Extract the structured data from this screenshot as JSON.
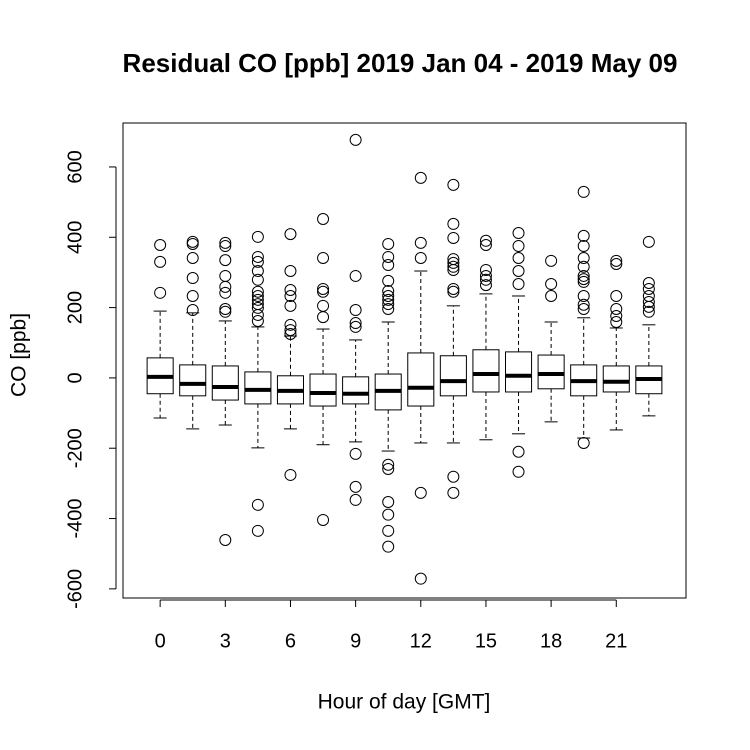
{
  "chart_data": {
    "type": "box",
    "title": "Residual CO [ppb] 2019 Jan 04 - 2019 May 09",
    "x_label": "Hour of day [GMT]",
    "y_label": "CO [ppb]",
    "categories": [
      "0",
      null,
      "3",
      null,
      "6",
      null,
      "9",
      null,
      "12",
      null,
      "15",
      null,
      "18",
      null,
      "21",
      null
    ],
    "ylim": [
      -626,
      725
    ],
    "yticks": [
      -600,
      -400,
      -200,
      0,
      200,
      400,
      600
    ],
    "color": "#000000",
    "boxes": [
      {
        "whisker_low": -114,
        "q1": -45,
        "median": 3,
        "q3": 57,
        "whisker_high": 190,
        "outliers": [
          378,
          330,
          242
        ]
      },
      {
        "whisker_low": -145,
        "q1": -51,
        "median": -17,
        "q3": 37,
        "whisker_high": 185,
        "outliers": [
          387,
          381,
          341,
          284,
          233,
          193
        ]
      },
      {
        "whisker_low": -134,
        "q1": -63,
        "median": -26,
        "q3": 34,
        "whisker_high": 162,
        "outliers": [
          384,
          375,
          335,
          290,
          259,
          242,
          196,
          188,
          -461
        ]
      },
      {
        "whisker_low": -199,
        "q1": -74,
        "median": -34,
        "q3": 17,
        "whisker_high": 145,
        "outliers": [
          401,
          344,
          330,
          304,
          279,
          245,
          233,
          222,
          210,
          199,
          179,
          162,
          -361,
          -435
        ]
      },
      {
        "whisker_low": -145,
        "q1": -74,
        "median": -37,
        "q3": 6,
        "whisker_high": 119,
        "outliers": [
          409,
          304,
          250,
          233,
          205,
          151,
          136,
          125,
          -276
        ]
      },
      {
        "whisker_low": -190,
        "q1": -80,
        "median": -43,
        "q3": 11,
        "whisker_high": 139,
        "outliers": [
          452,
          341,
          253,
          245,
          205,
          173,
          -404
        ]
      },
      {
        "whisker_low": -182,
        "q1": -74,
        "median": -45,
        "q3": 3,
        "whisker_high": 108,
        "outliers": [
          677,
          290,
          193,
          156,
          145,
          -216,
          -310,
          -347
        ]
      },
      {
        "whisker_low": -208,
        "q1": -91,
        "median": -37,
        "q3": 11,
        "whisker_high": 159,
        "outliers": [
          381,
          344,
          321,
          276,
          247,
          233,
          222,
          210,
          196,
          -247,
          -259,
          -353,
          -389,
          -435,
          -480
        ]
      },
      {
        "whisker_low": -185,
        "q1": -80,
        "median": -28,
        "q3": 71,
        "whisker_high": 304,
        "outliers": [
          569,
          384,
          341,
          -327,
          -571
        ]
      },
      {
        "whisker_low": -185,
        "q1": -51,
        "median": -9,
        "q3": 63,
        "whisker_high": 205,
        "outliers": [
          549,
          438,
          398,
          338,
          327,
          316,
          307,
          253,
          245,
          -281,
          -327
        ]
      },
      {
        "whisker_low": -176,
        "q1": -40,
        "median": 11,
        "q3": 80,
        "whisker_high": 239,
        "outliers": [
          390,
          378,
          307,
          290,
          279,
          264
        ]
      },
      {
        "whisker_low": -159,
        "q1": -40,
        "median": 6,
        "q3": 74,
        "whisker_high": 233,
        "outliers": [
          412,
          375,
          341,
          304,
          267,
          -210,
          -267
        ]
      },
      {
        "whisker_low": -125,
        "q1": -31,
        "median": 11,
        "q3": 65,
        "whisker_high": 159,
        "outliers": [
          333,
          267,
          233
        ]
      },
      {
        "whisker_low": -171,
        "q1": -51,
        "median": -9,
        "q3": 37,
        "whisker_high": 171,
        "outliers": [
          529,
          404,
          375,
          341,
          316,
          290,
          281,
          273,
          233,
          208,
          196,
          -185
        ]
      },
      {
        "whisker_low": -148,
        "q1": -40,
        "median": -11,
        "q3": 34,
        "whisker_high": 142,
        "outliers": [
          333,
          324,
          233,
          196,
          176,
          159
        ]
      },
      {
        "whisker_low": -108,
        "q1": -45,
        "median": -3,
        "q3": 34,
        "whisker_high": 151,
        "outliers": [
          387,
          270,
          253,
          233,
          216,
          202,
          188
        ]
      }
    ]
  }
}
